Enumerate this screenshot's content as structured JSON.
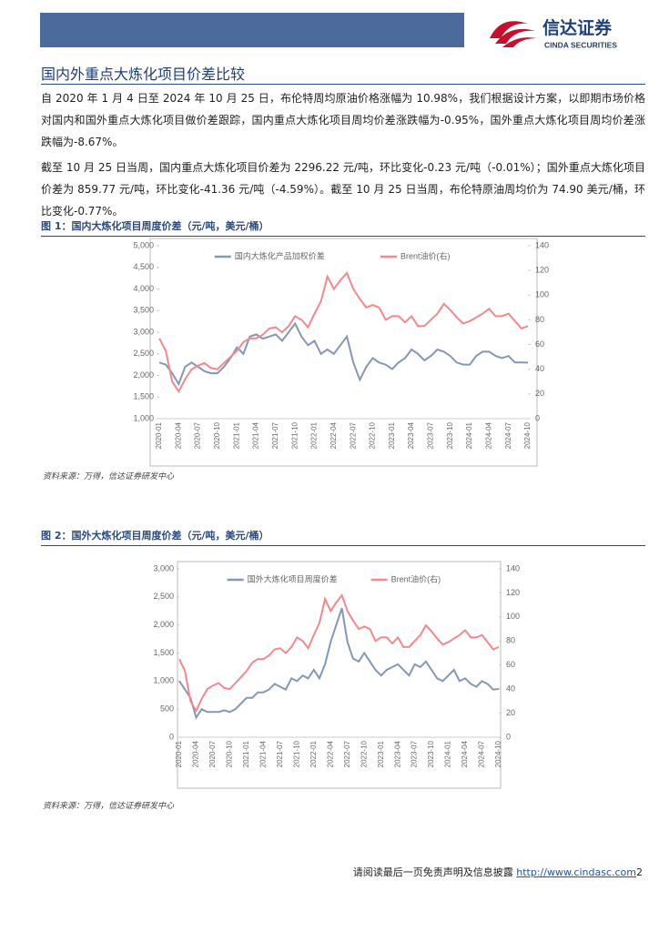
{
  "header": {
    "brand": "信达证券",
    "brand_en": "CINDA SECURITIES"
  },
  "section_title": "国内外重点大炼化项目价差比较",
  "paragraphs": [
    "自 2020 年 1 月 4 日至 2024 年 10 月 25 日，布伦特周均原油价格涨幅为 10.98%，我们根据设计方案，以即期市场价格对国内和国外重点大炼化项目做价差跟踪，国内重点大炼化项目周均价差涨跌幅为-0.95%，国外重点大炼化项目周均价差涨跌幅为-8.67%。",
    "截至 10 月 25 日当周，国内重点大炼化项目价差为 2296.22 元/吨，环比变化-0.23 元/吨（-0.01%）；国外重点大炼化项目价差为 859.77 元/吨，环比变化-41.36 元/吨（-4.59%）。截至 10 月 25 日当周，布伦特原油周均价为 74.90 美元/桶，环比变化-0.77%。"
  ],
  "figure_captions": [
    "图 1：国内大炼化项目周度价差（元/吨，美元/桶）",
    "图 2：国外大炼化项目周度价差（元/吨，美元/桶）"
  ],
  "sources": [
    "资料来源：万得，信达证券研发中心",
    "资料来源：万得，信达证券研发中心"
  ],
  "footer": {
    "text": "请阅读最后一页免责声明及信息披露",
    "link": "http://www.cindasc.com",
    "page": "2"
  },
  "chart_data": [
    {
      "type": "line",
      "legend": "top",
      "categories": [
        "2020-01",
        null,
        null,
        "2020-04",
        null,
        null,
        "2020-07",
        null,
        null,
        "2020-10",
        null,
        null,
        "2021-01",
        null,
        null,
        "2021-04",
        null,
        null,
        "2021-07",
        null,
        null,
        "2021-10",
        null,
        null,
        "2022-01",
        null,
        null,
        "2022-04",
        null,
        null,
        "2022-07",
        null,
        null,
        "2022-10",
        null,
        null,
        "2023-01",
        null,
        null,
        "2023-04",
        null,
        null,
        "2023-07",
        null,
        null,
        "2023-10",
        null,
        null,
        "2024-01",
        null,
        null,
        "2024-04",
        null,
        null,
        "2024-07",
        null,
        null,
        "2024-10"
      ],
      "ylim": [
        1000,
        5000
      ],
      "yticks": [
        {
          "value": 1000,
          "label": "1,000"
        },
        {
          "value": 1500,
          "label": "1,500"
        },
        {
          "value": 2000,
          "label": "2,000"
        },
        {
          "value": 2500,
          "label": "2,500"
        },
        {
          "value": 3000,
          "label": "3,000"
        },
        {
          "value": 3500,
          "label": "3,500"
        },
        {
          "value": 4000,
          "label": "4,000"
        },
        {
          "value": 4500,
          "label": "4,500"
        },
        {
          "value": 5000,
          "label": "5,000"
        }
      ],
      "y2lim": [
        0,
        140
      ],
      "y2ticks": [
        0,
        20,
        40,
        60,
        80,
        100,
        120,
        140
      ],
      "series": [
        {
          "name": "国内大炼化产品加权价差",
          "color": "#8497b8",
          "values": [
            2300,
            2250,
            2050,
            1800,
            2200,
            2300,
            2200,
            2100,
            2050,
            2050,
            2200,
            2400,
            2650,
            2500,
            2900,
            2950,
            2850,
            2900,
            2950,
            2800,
            3000,
            3200,
            2900,
            2700,
            2800,
            2500,
            2600,
            2500,
            2700,
            2900,
            2300,
            1900,
            2200,
            2400,
            2300,
            2250,
            2150,
            2300,
            2400,
            2600,
            2500,
            2350,
            2450,
            2600,
            2550,
            2450,
            2300,
            2250,
            2250,
            2450,
            2550,
            2550,
            2450,
            2400,
            2450,
            2300,
            2300,
            2296.22
          ]
        },
        {
          "name": "Brent油价(右)",
          "color": "#f4888b",
          "axis": "y2",
          "values": [
            65,
            55,
            30,
            22,
            32,
            40,
            43,
            45,
            41,
            40,
            45,
            50,
            55,
            62,
            65,
            65,
            68,
            73,
            74,
            70,
            75,
            83,
            80,
            74,
            85,
            95,
            115,
            105,
            112,
            118,
            105,
            97,
            90,
            92,
            90,
            80,
            83,
            83,
            78,
            83,
            75,
            75,
            80,
            85,
            93,
            88,
            82,
            77,
            79,
            82,
            85,
            89,
            83,
            83,
            85,
            79,
            73,
            74.9
          ]
        }
      ]
    },
    {
      "type": "line",
      "legend": "top",
      "categories": [
        "2020-01",
        null,
        null,
        "2020-04",
        null,
        null,
        "2020-07",
        null,
        null,
        "2020-10",
        null,
        null,
        "2021-01",
        null,
        null,
        "2021-04",
        null,
        null,
        "2021-07",
        null,
        null,
        "2021-10",
        null,
        null,
        "2022-01",
        null,
        null,
        "2022-04",
        null,
        null,
        "2022-07",
        null,
        null,
        "2022-10",
        null,
        null,
        "2023-01",
        null,
        null,
        "2023-04",
        null,
        null,
        "2023-07",
        null,
        null,
        "2023-10",
        null,
        null,
        "2024-01",
        null,
        null,
        "2024-04",
        null,
        null,
        "2024-07",
        null,
        null,
        "2024-10"
      ],
      "ylim": [
        0,
        3000
      ],
      "yticks": [
        0,
        500,
        {
          "value": 1000,
          "label": "1,000"
        },
        {
          "value": 1500,
          "label": "1,500"
        },
        {
          "value": 2000,
          "label": "2,000"
        },
        {
          "value": 2500,
          "label": "2,500"
        },
        {
          "value": 3000,
          "label": "3,000"
        }
      ],
      "y2lim": [
        0,
        140
      ],
      "y2ticks": [
        0,
        20,
        40,
        60,
        80,
        100,
        120,
        140
      ],
      "series": [
        {
          "name": "国外大炼化项目周度价差",
          "color": "#8497b8",
          "values": [
            1000,
            850,
            700,
            350,
            500,
            450,
            450,
            450,
            480,
            450,
            500,
            600,
            700,
            700,
            800,
            800,
            850,
            950,
            900,
            850,
            1050,
            1000,
            1100,
            1050,
            1200,
            1050,
            1300,
            1700,
            2000,
            2300,
            1700,
            1400,
            1350,
            1500,
            1350,
            1200,
            1100,
            1200,
            1250,
            1300,
            1200,
            1100,
            1300,
            1250,
            1350,
            1200,
            1050,
            1000,
            1100,
            1200,
            1000,
            1050,
            950,
            900,
            1000,
            950,
            850,
            859.77
          ]
        },
        {
          "name": "Brent油价(右)",
          "color": "#f4888b",
          "axis": "y2",
          "values": [
            65,
            55,
            30,
            22,
            32,
            40,
            43,
            45,
            41,
            40,
            45,
            50,
            55,
            62,
            65,
            65,
            68,
            73,
            74,
            70,
            75,
            83,
            80,
            74,
            85,
            95,
            115,
            105,
            112,
            118,
            105,
            97,
            90,
            92,
            90,
            80,
            83,
            83,
            78,
            83,
            75,
            75,
            80,
            85,
            93,
            88,
            82,
            77,
            79,
            82,
            85,
            89,
            83,
            83,
            85,
            79,
            73,
            74.9
          ]
        }
      ]
    }
  ]
}
